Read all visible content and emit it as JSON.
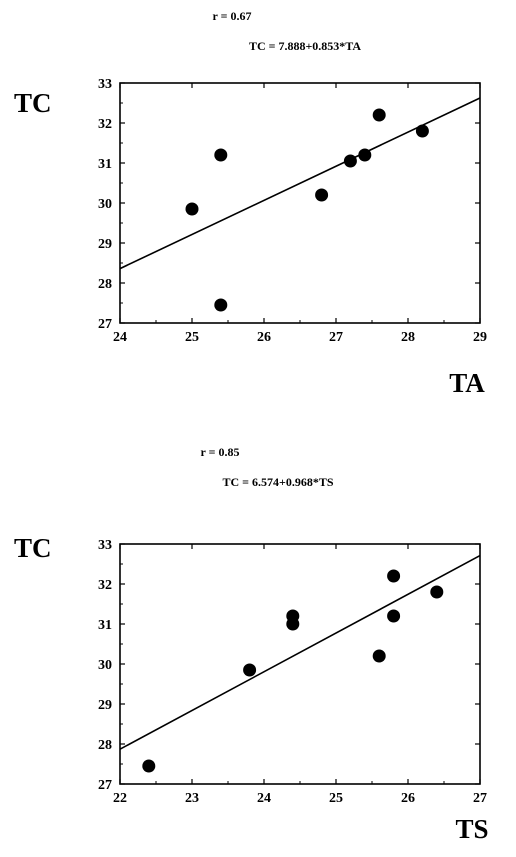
{
  "chart_data": [
    {
      "type": "scatter",
      "r_label": "r = 0.67",
      "equation": "TC = 7.888+0.853*TA",
      "xlabel": "TA",
      "ylabel": "TC",
      "xlim": [
        24,
        29
      ],
      "ylim": [
        27,
        33
      ],
      "xticks": [
        24,
        25,
        26,
        27,
        28,
        29
      ],
      "yticks": [
        27,
        28,
        29,
        30,
        31,
        32,
        33
      ],
      "grid": false,
      "points": [
        {
          "x": 25.0,
          "y": 29.85
        },
        {
          "x": 25.4,
          "y": 31.2
        },
        {
          "x": 25.4,
          "y": 27.45
        },
        {
          "x": 26.8,
          "y": 30.2
        },
        {
          "x": 27.2,
          "y": 31.05
        },
        {
          "x": 27.4,
          "y": 31.2
        },
        {
          "x": 27.6,
          "y": 32.2
        },
        {
          "x": 28.2,
          "y": 31.8
        }
      ],
      "regression": {
        "intercept": 7.888,
        "slope": 0.853
      }
    },
    {
      "type": "scatter",
      "r_label": "r = 0.85",
      "equation": "TC = 6.574+0.968*TS",
      "xlabel": "TS",
      "ylabel": "TC",
      "xlim": [
        22,
        27
      ],
      "ylim": [
        27,
        33
      ],
      "xticks": [
        22,
        23,
        24,
        25,
        26,
        27
      ],
      "yticks": [
        27,
        28,
        29,
        30,
        31,
        32,
        33
      ],
      "grid": false,
      "points": [
        {
          "x": 22.4,
          "y": 27.45
        },
        {
          "x": 23.8,
          "y": 29.85
        },
        {
          "x": 24.4,
          "y": 31.2
        },
        {
          "x": 24.4,
          "y": 31.0
        },
        {
          "x": 25.6,
          "y": 30.2
        },
        {
          "x": 25.8,
          "y": 32.2
        },
        {
          "x": 25.8,
          "y": 31.2
        },
        {
          "x": 26.4,
          "y": 31.8
        }
      ],
      "regression": {
        "intercept": 6.574,
        "slope": 0.968
      }
    }
  ]
}
